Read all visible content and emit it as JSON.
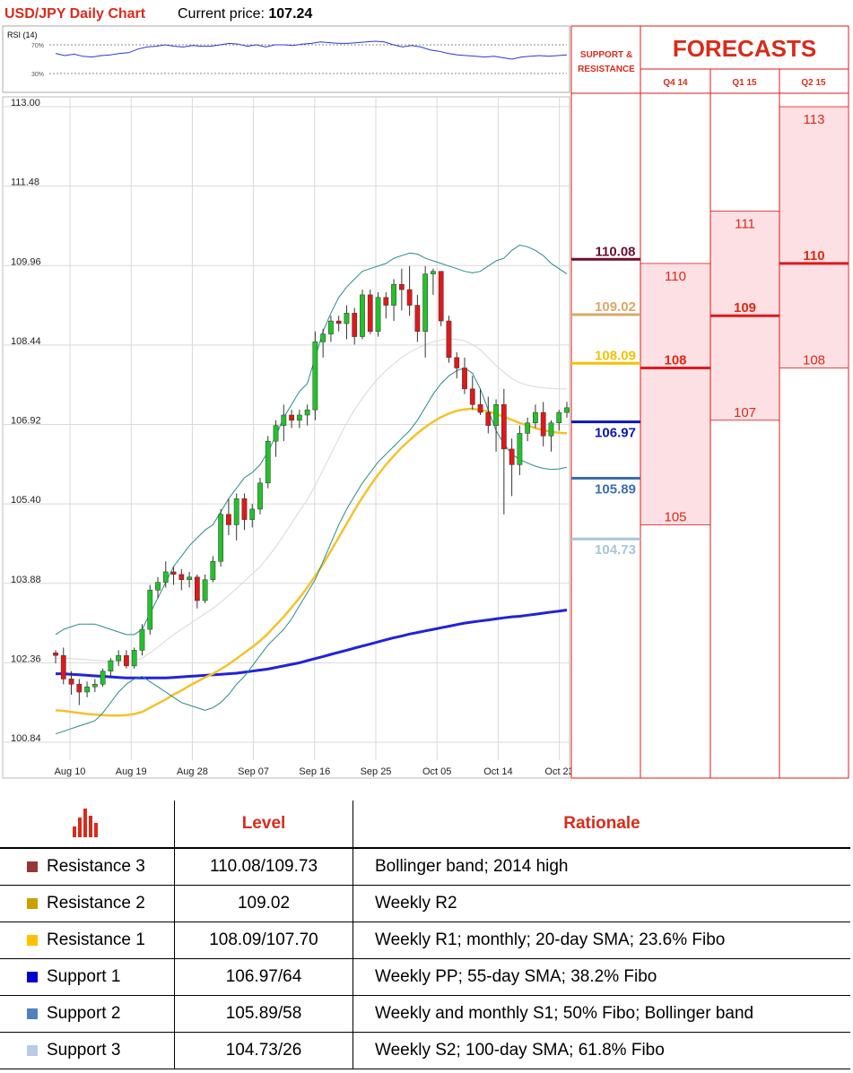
{
  "header": {
    "title": "USD/JPY Daily Chart",
    "price_label": "Current price: ",
    "price_value": "107.24"
  },
  "rsi": {
    "label": "RSI (14)",
    "levels": [
      "70%",
      "30%"
    ],
    "values": [
      58,
      55,
      57,
      54,
      53,
      55,
      56,
      58,
      59,
      64,
      67,
      68,
      70,
      68,
      67,
      69,
      68,
      68,
      70,
      72,
      71,
      68,
      70,
      67,
      70,
      70,
      69,
      71,
      72,
      74,
      73,
      72,
      72,
      73,
      74,
      75,
      74,
      70,
      67,
      69,
      67,
      63,
      61,
      58,
      56,
      55,
      54,
      53,
      54,
      52,
      50,
      53,
      54,
      55,
      54,
      55,
      56
    ]
  },
  "chart_data": {
    "type": "candlestick",
    "title": "USD/JPY Daily Chart",
    "y_ticks": [
      "113.00",
      "111.48",
      "109.96",
      "108.44",
      "106.92",
      "105.40",
      "103.88",
      "102.36",
      "100.84"
    ],
    "ylim": [
      100.84,
      113.0
    ],
    "x_ticks": [
      "Aug 10",
      "Aug 19",
      "Aug 28",
      "Sep 07",
      "Sep 16",
      "Sep 25",
      "Oct 05",
      "Oct 14",
      "Oct 23"
    ],
    "grid": true,
    "candles": [
      [
        102.55,
        102.6,
        102.35,
        102.5
      ],
      [
        102.5,
        102.65,
        101.95,
        102.05
      ],
      [
        102.05,
        102.2,
        101.75,
        101.95
      ],
      [
        101.95,
        102.05,
        101.55,
        101.8
      ],
      [
        101.8,
        102.0,
        101.7,
        101.9
      ],
      [
        101.9,
        102.05,
        101.8,
        101.95
      ],
      [
        101.95,
        102.25,
        101.9,
        102.2
      ],
      [
        102.2,
        102.45,
        102.1,
        102.4
      ],
      [
        102.4,
        102.6,
        102.3,
        102.5
      ],
      [
        102.5,
        102.6,
        102.25,
        102.3
      ],
      [
        102.3,
        102.65,
        102.25,
        102.6
      ],
      [
        102.6,
        103.1,
        102.5,
        103.0
      ],
      [
        103.0,
        103.85,
        102.9,
        103.75
      ],
      [
        103.75,
        104.0,
        103.6,
        103.9
      ],
      [
        103.9,
        104.3,
        103.8,
        104.1
      ],
      [
        104.1,
        104.2,
        103.85,
        104.05
      ],
      [
        104.05,
        104.15,
        103.75,
        103.95
      ],
      [
        103.95,
        104.1,
        103.8,
        104.0
      ],
      [
        104.0,
        104.05,
        103.4,
        103.55
      ],
      [
        103.55,
        104.05,
        103.5,
        103.95
      ],
      [
        103.95,
        104.4,
        103.9,
        104.3
      ],
      [
        104.3,
        105.3,
        104.2,
        105.2
      ],
      [
        105.2,
        105.5,
        104.8,
        105.0
      ],
      [
        105.0,
        105.6,
        104.7,
        105.5
      ],
      [
        105.5,
        105.6,
        104.9,
        105.1
      ],
      [
        105.1,
        105.4,
        104.95,
        105.3
      ],
      [
        105.3,
        105.9,
        105.2,
        105.8
      ],
      [
        105.8,
        106.7,
        105.7,
        106.6
      ],
      [
        106.6,
        107.0,
        106.3,
        106.9
      ],
      [
        106.9,
        107.3,
        106.6,
        107.1
      ],
      [
        107.1,
        107.2,
        106.85,
        107.0
      ],
      [
        107.0,
        107.2,
        106.85,
        107.1
      ],
      [
        107.1,
        107.3,
        106.9,
        107.2
      ],
      [
        107.2,
        108.7,
        107.0,
        108.5
      ],
      [
        108.5,
        108.75,
        108.2,
        108.65
      ],
      [
        108.65,
        109.0,
        108.5,
        108.9
      ],
      [
        108.9,
        109.0,
        108.7,
        108.85
      ],
      [
        108.85,
        109.2,
        108.55,
        109.05
      ],
      [
        109.05,
        109.15,
        108.45,
        108.6
      ],
      [
        108.6,
        109.5,
        108.55,
        109.4
      ],
      [
        109.4,
        109.5,
        108.65,
        108.7
      ],
      [
        108.7,
        109.45,
        108.6,
        109.35
      ],
      [
        109.35,
        109.45,
        108.95,
        109.2
      ],
      [
        109.2,
        109.7,
        108.9,
        109.6
      ],
      [
        109.6,
        109.9,
        109.1,
        109.5
      ],
      [
        109.5,
        109.95,
        109.0,
        109.2
      ],
      [
        109.2,
        109.4,
        108.5,
        108.7
      ],
      [
        108.7,
        109.95,
        108.2,
        109.8
      ],
      [
        109.8,
        109.9,
        109.4,
        109.85
      ],
      [
        109.85,
        109.85,
        108.8,
        108.9
      ],
      [
        108.9,
        109.0,
        108.1,
        108.2
      ],
      [
        108.2,
        108.3,
        107.8,
        108.0
      ],
      [
        108.0,
        108.2,
        107.5,
        107.6
      ],
      [
        107.6,
        107.85,
        107.2,
        107.3
      ],
      [
        107.3,
        107.6,
        107.1,
        107.15
      ],
      [
        107.15,
        107.45,
        106.75,
        106.9
      ],
      [
        106.9,
        107.4,
        106.4,
        107.3
      ],
      [
        107.3,
        107.6,
        105.2,
        106.45
      ],
      [
        106.45,
        106.65,
        105.55,
        106.15
      ],
      [
        106.15,
        106.9,
        105.95,
        106.75
      ],
      [
        106.75,
        107.05,
        106.6,
        106.95
      ],
      [
        106.95,
        107.3,
        106.85,
        107.15
      ],
      [
        107.15,
        107.35,
        106.5,
        106.7
      ],
      [
        106.7,
        107.0,
        106.4,
        106.95
      ],
      [
        106.95,
        107.2,
        106.8,
        107.15
      ],
      [
        107.15,
        107.35,
        107.05,
        107.24
      ]
    ],
    "series": [
      {
        "values": [
          102.15,
          102.15,
          102.14,
          102.13,
          102.12,
          102.11,
          102.1,
          102.09,
          102.08,
          102.07,
          102.07,
          102.07,
          102.07,
          102.07,
          102.07,
          102.08,
          102.09,
          102.1,
          102.11,
          102.12,
          102.13,
          102.14,
          102.15,
          102.16,
          102.18,
          102.2,
          102.22,
          102.24,
          102.27,
          102.3,
          102.33,
          102.36,
          102.4,
          102.44,
          102.48,
          102.52,
          102.56,
          102.6,
          102.64,
          102.68,
          102.72,
          102.76,
          102.8,
          102.84,
          102.87,
          102.91,
          102.94,
          102.97,
          103.0,
          103.03,
          103.06,
          103.09,
          103.12,
          103.14,
          103.16,
          103.18,
          103.2,
          103.22,
          103.24,
          103.25,
          103.27,
          103.29,
          103.31,
          103.33,
          103.35,
          103.37
        ]
      },
      {
        "values": [
          101.45,
          101.44,
          101.42,
          101.4,
          101.38,
          101.37,
          101.36,
          101.35,
          101.35,
          101.36,
          101.38,
          101.42,
          101.5,
          101.58,
          101.66,
          101.75,
          101.83,
          101.92,
          102.0,
          102.08,
          102.15,
          102.24,
          102.33,
          102.44,
          102.55,
          102.66,
          102.78,
          102.92,
          103.08,
          103.24,
          103.42,
          103.6,
          103.8,
          104.02,
          104.25,
          104.5,
          104.76,
          105.02,
          105.28,
          105.52,
          105.75,
          105.96,
          106.15,
          106.32,
          106.48,
          106.62,
          106.75,
          106.87,
          106.97,
          107.06,
          107.13,
          107.18,
          107.21,
          107.22,
          107.2,
          107.17,
          107.12,
          107.07,
          107.01,
          106.95,
          106.9,
          106.85,
          106.81,
          106.78,
          106.76,
          106.75
        ]
      },
      {
        "values": [
          102.9,
          103.0,
          103.05,
          103.1,
          103.1,
          103.1,
          103.05,
          103.0,
          102.95,
          102.9,
          102.9,
          103.0,
          103.3,
          103.6,
          103.9,
          104.2,
          104.4,
          104.6,
          104.75,
          104.9,
          105.0,
          105.25,
          105.5,
          105.7,
          105.9,
          106.0,
          106.15,
          106.4,
          106.7,
          107.05,
          107.3,
          107.55,
          107.7,
          108.2,
          108.7,
          109.05,
          109.35,
          109.55,
          109.7,
          109.85,
          109.9,
          109.95,
          110.0,
          110.1,
          110.15,
          110.2,
          110.18,
          110.1,
          110.05,
          110.0,
          109.95,
          109.9,
          109.85,
          109.82,
          109.85,
          109.95,
          110.05,
          110.1,
          110.25,
          110.35,
          110.32,
          110.25,
          110.15,
          110.0,
          109.9,
          109.8
        ]
      },
      {
        "values": [
          102.45,
          102.45,
          102.44,
          102.43,
          102.42,
          102.41,
          102.4,
          102.39,
          102.39,
          102.4,
          102.4,
          102.45,
          102.55,
          102.66,
          102.78,
          102.9,
          103.0,
          103.1,
          103.2,
          103.3,
          103.4,
          103.52,
          103.65,
          103.78,
          103.92,
          104.06,
          104.2,
          104.38,
          104.58,
          104.8,
          105.03,
          105.26,
          105.48,
          105.75,
          106.05,
          106.35,
          106.65,
          106.95,
          107.2,
          107.42,
          107.62,
          107.8,
          107.95,
          108.08,
          108.2,
          108.3,
          108.38,
          108.45,
          108.5,
          108.54,
          108.56,
          108.55,
          108.52,
          108.45,
          108.35,
          108.2,
          108.05,
          107.92,
          107.8,
          107.72,
          107.67,
          107.64,
          107.62,
          107.61,
          107.6,
          107.6
        ]
      },
      {
        "values": [
          101.0,
          101.05,
          101.1,
          101.15,
          101.2,
          101.25,
          101.4,
          101.6,
          101.8,
          101.95,
          102.05,
          102.1,
          102.0,
          101.9,
          101.8,
          101.7,
          101.6,
          101.55,
          101.5,
          101.45,
          101.5,
          101.6,
          101.75,
          101.95,
          102.1,
          102.3,
          102.5,
          102.7,
          102.85,
          103.0,
          103.2,
          103.45,
          103.7,
          103.95,
          104.3,
          104.65,
          105.0,
          105.3,
          105.55,
          105.8,
          106.0,
          106.2,
          106.35,
          106.5,
          106.65,
          106.8,
          107.0,
          107.25,
          107.5,
          107.7,
          107.85,
          107.95,
          108.0,
          107.9,
          107.6,
          107.2,
          106.8,
          106.55,
          106.35,
          106.25,
          106.18,
          106.12,
          106.08,
          106.06,
          106.07,
          106.1
        ]
      }
    ]
  },
  "levels_panel": {
    "sr_title_1": "SUPPORT &",
    "sr_title_2": "RESISTANCE",
    "forecasts_title": "FORECASTS",
    "quarters": [
      "Q4 14",
      "Q1 15",
      "Q2 15"
    ],
    "sr_levels": [
      {
        "label": "110.08",
        "value": 110.08,
        "color": "#6b1030"
      },
      {
        "label": "109.02",
        "value": 109.02,
        "color": "#d9a86a"
      },
      {
        "label": "108.09",
        "value": 108.09,
        "color": "#f2c200"
      },
      {
        "label": "106.97",
        "value": 106.97,
        "color": "#0b17b5"
      },
      {
        "label": "105.89",
        "value": 105.89,
        "color": "#3a6fb0"
      },
      {
        "label": "104.73",
        "value": 104.73,
        "color": "#a9c6d9"
      }
    ],
    "forecasts": [
      {
        "quarter": "Q4 14",
        "high": "110",
        "mid": "108",
        "low": "105",
        "high_v": 110,
        "mid_v": 108,
        "low_v": 105
      },
      {
        "quarter": "Q1 15",
        "high": "111",
        "mid": "109",
        "low": "107",
        "high_v": 111,
        "mid_v": 109,
        "low_v": 107
      },
      {
        "quarter": "Q2 15",
        "high": "113",
        "mid": "110",
        "low": "108",
        "high_v": 113,
        "mid_v": 110,
        "low_v": 108
      }
    ]
  },
  "levels_table": {
    "header_level": "Level",
    "header_rationale": "Rationale",
    "rows": [
      {
        "name": "Resistance 3",
        "color": "#953735",
        "level": "110.08/109.73",
        "rationale": "Bollinger band; 2014 high"
      },
      {
        "name": "Resistance 2",
        "color": "#c9a000",
        "level": "109.02",
        "rationale": "Weekly R2"
      },
      {
        "name": "Resistance 1",
        "color": "#ffc000",
        "level": "108.09/107.70",
        "rationale": "Weekly R1; monthly; 20-day SMA; 23.6% Fibo"
      },
      {
        "name": "Support 1",
        "color": "#0000d0",
        "level": "106.97/64",
        "rationale": "Weekly PP; 55-day SMA; 38.2% Fibo"
      },
      {
        "name": "Support 2",
        "color": "#4f81bd",
        "level": "105.89/58",
        "rationale": "Weekly and monthly S1; 50% Fibo; Bollinger band"
      },
      {
        "name": "Support 3",
        "color": "#b8cce4",
        "level": "104.73/26",
        "rationale": "Weekly S2; 100-day SMA; 61.8% Fibo"
      }
    ]
  },
  "colors": {
    "title_red": "#d92b1a",
    "candle_up": "#22c22a",
    "candle_down": "#e0181a",
    "forecast_fill": "#fde0e3",
    "forecast_line": "#e0181a",
    "ma_yellow": "#f4c22b",
    "ma_blue": "#2222d8",
    "bollinger": "#2a8a8a",
    "rsi_line": "#2a3ad0"
  }
}
